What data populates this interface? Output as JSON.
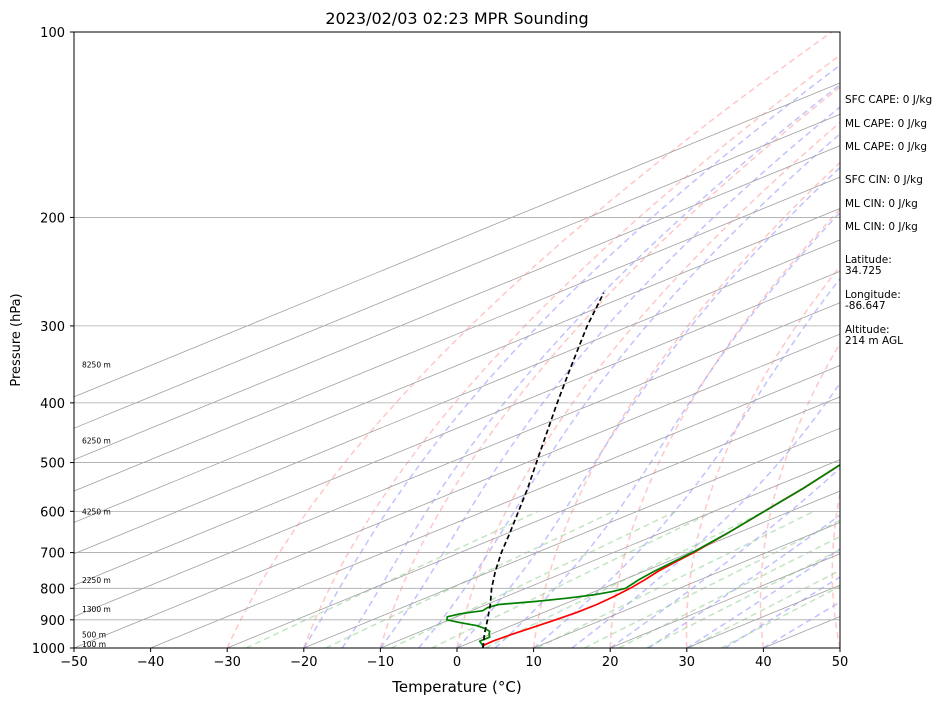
{
  "chart_data": {
    "type": "line",
    "title": "2023/02/03 02:23 MPR Sounding",
    "xlabel": "Temperature (°C)",
    "ylabel": "Pressure (hPa)",
    "xlim": [
      -50,
      50
    ],
    "ylim": [
      1000,
      100
    ],
    "y_scale": "log",
    "grid": true,
    "x_ticks": [
      -50,
      -40,
      -30,
      -20,
      -10,
      0,
      10,
      20,
      30,
      40,
      50
    ],
    "y_ticks": [
      100,
      200,
      300,
      400,
      500,
      600,
      700,
      800,
      900,
      1000
    ],
    "colors": {
      "temperature": "#ff0000",
      "dewpoint": "#008000",
      "parcel": "#000000",
      "dry_adiabat": "#ff9999",
      "moist_adiabat": "#9999ff",
      "mixing_ratio": "#88cc88",
      "isotherm": "#a0a0a0"
    },
    "series": [
      {
        "key": "temperature",
        "pressure": [
          1000,
          990,
          975,
          950,
          925,
          900,
          875,
          850,
          825,
          800,
          775,
          750,
          725,
          700,
          650,
          600,
          550,
          500,
          450,
          400,
          350,
          300,
          280,
          265
        ],
        "values": [
          3.4,
          2.6,
          2.5,
          2.8,
          3.4,
          3.9,
          4.3,
          4.4,
          4.1,
          3.6,
          2.8,
          1.8,
          1.1,
          0.5,
          -1.3,
          -3.4,
          -5.7,
          -8.6,
          -12.3,
          -16.8,
          -22.1,
          -28.6,
          -31.6,
          -34.0
        ]
      },
      {
        "key": "dewpoint",
        "pressure": [
          1000,
          990,
          975,
          960,
          950,
          940,
          930,
          920,
          910,
          900,
          890,
          880,
          870,
          860,
          850,
          840,
          830,
          820,
          810,
          800,
          775,
          750,
          725,
          700,
          650,
          600,
          550,
          500,
          450,
          400,
          350,
          300,
          285,
          275,
          265
        ],
        "values": [
          3.4,
          2.5,
          0.8,
          0.8,
          -0.2,
          -1.0,
          -2.5,
          -4.5,
          -7.5,
          -10.3,
          -11.2,
          -10.5,
          -8.5,
          -8.9,
          -8.4,
          -4.5,
          -1.5,
          0.9,
          2.3,
          3.0,
          2.0,
          1.3,
          0.8,
          0.3,
          -1.3,
          -3.4,
          -5.7,
          -8.6,
          -12.3,
          -16.8,
          -22.1,
          -28.6,
          -31.8,
          -33.8,
          -34.3
        ]
      },
      {
        "key": "parcel",
        "pressure": [
          1000,
          950,
          900,
          850,
          800,
          750,
          700,
          650,
          600,
          550,
          500,
          450,
          400,
          350,
          300,
          265
        ],
        "values": [
          3.4,
          -0.8,
          -5.0,
          -9.5,
          -14.5,
          -19.5,
          -24.6,
          -29.8,
          -35.5,
          -41.7,
          -48.7,
          -56.4,
          -65.0,
          -74.6,
          -85.6,
          -94.0
        ]
      }
    ],
    "height_labels": [
      {
        "text": "100 m",
        "pressure": 988
      },
      {
        "text": "500 m",
        "pressure": 955
      },
      {
        "text": "1300 m",
        "pressure": 868
      },
      {
        "text": "2250 m",
        "pressure": 778
      },
      {
        "text": "4250 m",
        "pressure": 603
      },
      {
        "text": "6250 m",
        "pressure": 462
      },
      {
        "text": "8250 m",
        "pressure": 348
      }
    ]
  },
  "side_panel": {
    "sfc_cape": "SFC CAPE: 0 J/kg",
    "ml_cape_1": "ML CAPE: 0 J/kg",
    "ml_cape_2": "ML CAPE: 0 J/kg",
    "sfc_cin": "SFC CIN: 0 J/kg",
    "ml_cin_1": "ML CIN: 0 J/kg",
    "ml_cin_2": "ML CIN: 0 J/kg",
    "latitude": "Latitude:\n34.725",
    "longitude": "Longitude:\n-86.647",
    "altitude": "Altitude:\n214 m AGL"
  }
}
